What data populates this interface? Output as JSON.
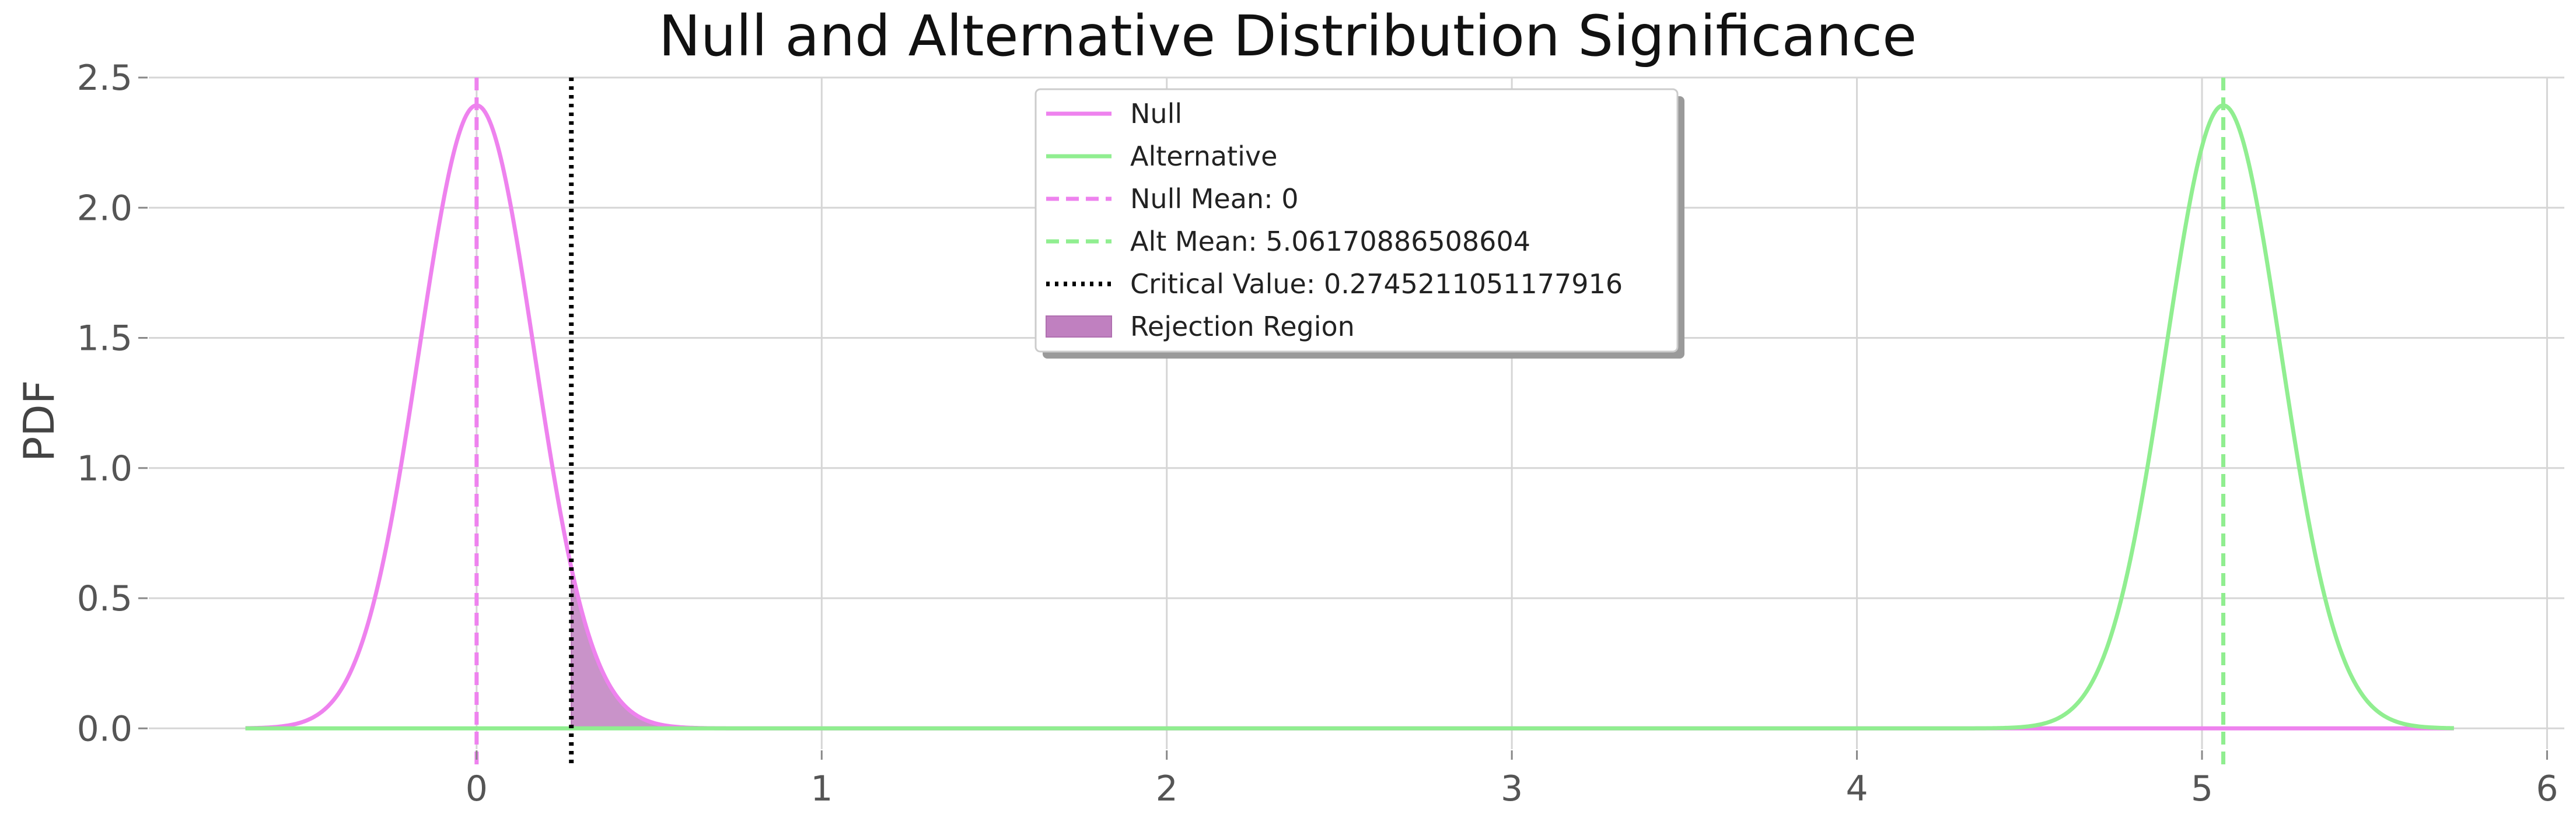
{
  "chart_data": {
    "type": "line",
    "title": "Null and Alternative Distribution Significance",
    "xlabel": "",
    "ylabel": "PDF",
    "xlim": [
      -0.95,
      6.05
    ],
    "ylim": [
      -0.08,
      2.5
    ],
    "x_ticks": [
      0,
      1,
      2,
      3,
      4,
      5,
      6
    ],
    "y_ticks": [
      0.0,
      0.5,
      1.0,
      1.5,
      2.0,
      2.5
    ],
    "grid": true,
    "legend_position": "top-center",
    "series": [
      {
        "name": "Null",
        "kind": "normal-pdf",
        "mean": 0,
        "sd": 0.1667,
        "x_range": [
          -0.67,
          5.73
        ],
        "color": "#ee82ee"
      },
      {
        "name": "Alternative",
        "kind": "normal-pdf",
        "mean": 5.06170886508604,
        "sd": 0.1667,
        "x_range": [
          -0.67,
          5.73
        ],
        "color": "#90ee90"
      }
    ],
    "reference_lines": [
      {
        "name": "Null Mean: 0",
        "x": 0,
        "style": "dashed",
        "color": "#ee82ee"
      },
      {
        "name": "Alt Mean: 5.06170886508604",
        "x": 5.06170886508604,
        "style": "dashed",
        "color": "#90ee90"
      },
      {
        "name": "Critical Value: 0.2745211051177916",
        "x": 0.2745211051177916,
        "style": "dotted",
        "color": "#000000"
      }
    ],
    "shaded_region": {
      "name": "Rejection Region",
      "from": 0.2745211051177916,
      "to": 0.7,
      "under": "Null",
      "color": "#c080c0"
    },
    "legend": [
      {
        "label": "Null",
        "style": "solid",
        "color": "#ee82ee"
      },
      {
        "label": "Alternative",
        "style": "solid",
        "color": "#90ee90"
      },
      {
        "label": "Null Mean: 0",
        "style": "dashed",
        "color": "#ee82ee"
      },
      {
        "label": "Alt Mean: 5.06170886508604",
        "style": "dashed",
        "color": "#90ee90"
      },
      {
        "label": "Critical Value: 0.2745211051177916",
        "style": "dotted",
        "color": "#000000"
      },
      {
        "label": "Rejection Region",
        "style": "patch",
        "color": "#c080c0"
      }
    ]
  }
}
